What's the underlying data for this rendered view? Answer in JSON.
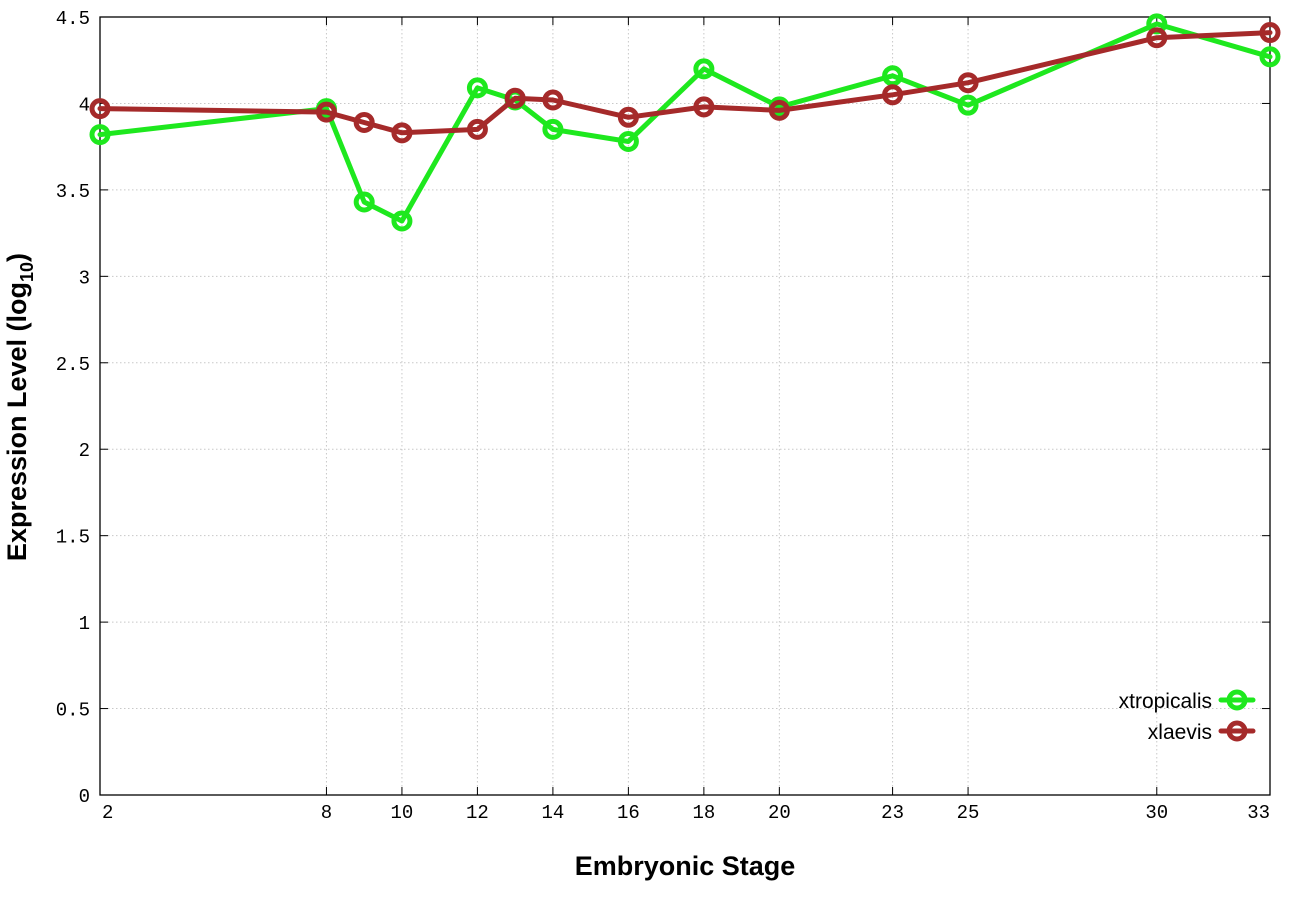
{
  "chart_data": {
    "type": "line",
    "xlabel": "Embryonic Stage",
    "ylabel_main": "Expression Level (log",
    "ylabel_sub": "10",
    "ylabel_close": ")",
    "xlim": [
      2,
      33
    ],
    "ylim": [
      0,
      4.5
    ],
    "x_ticks": [
      2,
      8,
      10,
      12,
      14,
      16,
      18,
      20,
      23,
      25,
      30,
      33
    ],
    "y_ticks": [
      0,
      0.5,
      1,
      1.5,
      2,
      2.5,
      3,
      3.5,
      4,
      4.5
    ],
    "y_tick_labels": [
      "0",
      "0.5",
      "1",
      "1.5",
      "2",
      "2.5",
      "3",
      "3.5",
      "4",
      "4.5"
    ],
    "grid": true,
    "legend_position": "bottom-right",
    "series": [
      {
        "name": "xtropicalis",
        "color": "#1ee81e",
        "x": [
          2,
          8,
          9,
          10,
          12,
          13,
          14,
          16,
          18,
          20,
          23,
          25,
          30,
          33
        ],
        "y": [
          3.82,
          3.97,
          3.43,
          3.32,
          4.09,
          4.02,
          3.85,
          3.78,
          4.2,
          3.98,
          4.16,
          3.99,
          4.46,
          4.27
        ]
      },
      {
        "name": "xlaevis",
        "color": "#a52a2a",
        "x": [
          2,
          8,
          9,
          10,
          12,
          13,
          14,
          16,
          18,
          20,
          23,
          25,
          30,
          33
        ],
        "y": [
          3.97,
          3.95,
          3.89,
          3.83,
          3.85,
          4.03,
          4.02,
          3.92,
          3.98,
          3.96,
          4.05,
          4.12,
          4.38,
          4.41
        ]
      }
    ]
  }
}
